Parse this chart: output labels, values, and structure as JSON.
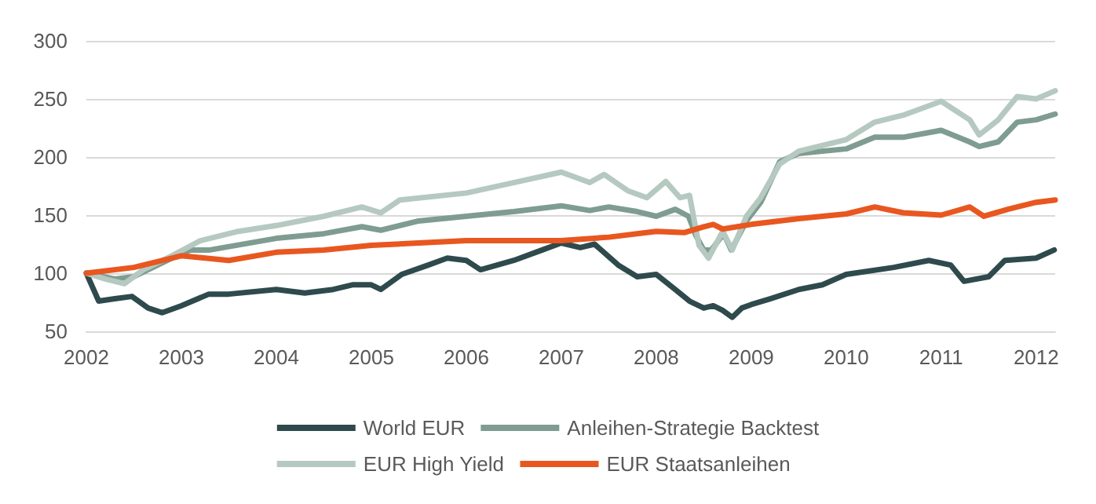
{
  "chart_data": {
    "type": "line",
    "xlim": [
      2002,
      2012.2
    ],
    "xticks": [
      2002,
      2003,
      2004,
      2005,
      2006,
      2007,
      2008,
      2009,
      2010,
      2011,
      2012
    ],
    "ylim": [
      50,
      300
    ],
    "yticks": [
      50,
      100,
      150,
      200,
      250,
      300
    ],
    "grid": "y",
    "legend": "bottom",
    "marker": "none",
    "line_style": "solid",
    "series": [
      {
        "name": "World EUR",
        "color": "#2f4a4d",
        "x": [
          2002,
          2002.13,
          2002.3,
          2002.48,
          2002.65,
          2002.8,
          2003,
          2003.29,
          2003.5,
          2004,
          2004.3,
          2004.6,
          2004.8,
          2005,
          2005.1,
          2005.32,
          2005.6,
          2005.8,
          2006,
          2006.15,
          2006.5,
          2006.8,
          2007,
          2007.2,
          2007.35,
          2007.6,
          2007.8,
          2008,
          2008.2,
          2008.35,
          2008.5,
          2008.6,
          2008.7,
          2008.8,
          2008.9,
          2009,
          2009.2,
          2009.5,
          2009.75,
          2010,
          2010.5,
          2010.87,
          2011.1,
          2011.24,
          2011.5,
          2011.67,
          2012,
          2012.19
        ],
        "values": [
          100,
          76,
          78,
          80,
          70,
          66,
          72,
          82,
          82,
          86,
          83,
          86,
          90,
          90,
          86,
          99,
          107,
          113,
          111,
          103,
          111,
          120,
          126,
          122,
          125,
          107,
          97,
          99,
          86,
          76,
          70,
          72,
          68,
          62,
          70,
          73,
          78,
          86,
          90,
          99,
          105,
          111,
          107,
          93,
          97,
          111,
          113,
          120
        ]
      },
      {
        "name": "Anleihen-Strategie Backtest",
        "color": "#7f9c91",
        "x": [
          2002,
          2002.3,
          2002.5,
          2002.9,
          2003.1,
          2003.3,
          2004,
          2004.5,
          2004.9,
          2005.1,
          2005.5,
          2006,
          2006.5,
          2007,
          2007.3,
          2007.5,
          2007.8,
          2008,
          2008.2,
          2008.34,
          2008.42,
          2008.5,
          2008.58,
          2008.71,
          2008.79,
          2008.95,
          2009.1,
          2009.3,
          2009.5,
          2010,
          2010.3,
          2010.6,
          2011,
          2011.3,
          2011.4,
          2011.6,
          2011.8,
          2012,
          2012.2
        ],
        "values": [
          100,
          95,
          97,
          113,
          120,
          120,
          130,
          134,
          140,
          137,
          145,
          149,
          153,
          158,
          154,
          157,
          153,
          149,
          155,
          149,
          132,
          120,
          120,
          134,
          120,
          145,
          161,
          196,
          203,
          207,
          217,
          217,
          223,
          213,
          209,
          213,
          230,
          232,
          237
        ]
      },
      {
        "name": "EUR High Yield",
        "color": "#b5c9c1",
        "x": [
          2002,
          2002.2,
          2002.4,
          2002.6,
          2002.9,
          2003.2,
          2003.6,
          2004,
          2004.5,
          2004.9,
          2005.1,
          2005.3,
          2006,
          2006.5,
          2007,
          2007.3,
          2007.45,
          2007.7,
          2007.9,
          2008.1,
          2008.25,
          2008.35,
          2008.45,
          2008.55,
          2008.7,
          2008.8,
          2008.95,
          2009.1,
          2009.3,
          2009.5,
          2010,
          2010.3,
          2010.6,
          2011,
          2011.3,
          2011.4,
          2011.6,
          2011.8,
          2012,
          2012.2
        ],
        "values": [
          100,
          95,
          91,
          103,
          115,
          128,
          136,
          141,
          149,
          157,
          152,
          163,
          169,
          178,
          187,
          178,
          185,
          171,
          165,
          179,
          165,
          167,
          124,
          113,
          136,
          120,
          149,
          165,
          194,
          205,
          215,
          230,
          236,
          248,
          232,
          219,
          232,
          252,
          250,
          257
        ]
      },
      {
        "name": "EUR Staatsanleihen",
        "color": "#e8571f",
        "x": [
          2002,
          2002.5,
          2003,
          2003.5,
          2004,
          2004.5,
          2005,
          2006,
          2007,
          2007.5,
          2008,
          2008.3,
          2008.5,
          2008.6,
          2008.7,
          2009,
          2009.5,
          2010,
          2010.3,
          2010.6,
          2011,
          2011.3,
          2011.45,
          2011.7,
          2012,
          2012.2
        ],
        "values": [
          100,
          105,
          115,
          111,
          118,
          120,
          124,
          128,
          128,
          131,
          136,
          135,
          140,
          142,
          138,
          142,
          147,
          151,
          157,
          152,
          150,
          157,
          149,
          155,
          161,
          163
        ]
      }
    ]
  }
}
